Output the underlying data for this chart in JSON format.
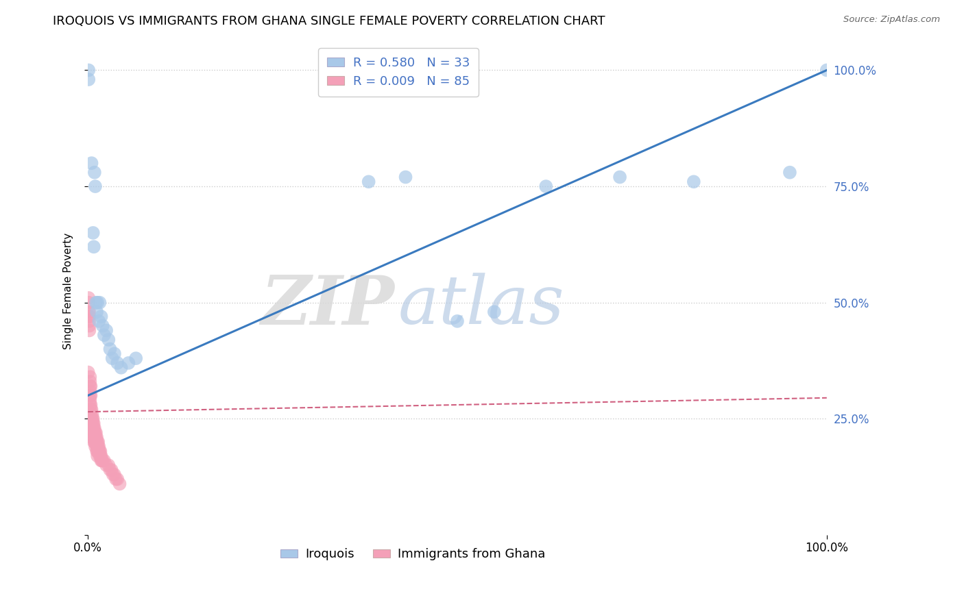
{
  "title": "IROQUOIS VS IMMIGRANTS FROM GHANA SINGLE FEMALE POVERTY CORRELATION CHART",
  "source": "Source: ZipAtlas.com",
  "ylabel": "Single Female Poverty",
  "legend_blue_r": "R = 0.580",
  "legend_blue_n": "N = 33",
  "legend_pink_r": "R = 0.009",
  "legend_pink_n": "N = 85",
  "legend_blue_label": "Iroquois",
  "legend_pink_label": "Immigrants from Ghana",
  "watermark_zip": "ZIP",
  "watermark_atlas": "atlas",
  "blue_scatter_color": "#a8c8e8",
  "pink_scatter_color": "#f4a0b8",
  "line_blue_color": "#3a7abf",
  "line_pink_color": "#d06080",
  "background_color": "#ffffff",
  "grid_color": "#cccccc",
  "right_tick_color": "#4472c4",
  "title_fontsize": 13,
  "axis_label_fontsize": 11,
  "tick_fontsize": 12,
  "legend_fontsize": 13,
  "iroquois_x": [
    0.001,
    0.001,
    0.005,
    0.007,
    0.008,
    0.009,
    0.01,
    0.011,
    0.012,
    0.013,
    0.015,
    0.016,
    0.018,
    0.02,
    0.022,
    0.025,
    0.028,
    0.03,
    0.033,
    0.036,
    0.04,
    0.045,
    0.055,
    0.065,
    0.38,
    0.43,
    0.5,
    0.55,
    0.62,
    0.72,
    0.82,
    0.95,
    1.0
  ],
  "iroquois_y": [
    1.0,
    0.98,
    0.8,
    0.65,
    0.62,
    0.78,
    0.75,
    0.5,
    0.48,
    0.5,
    0.46,
    0.5,
    0.47,
    0.45,
    0.43,
    0.44,
    0.42,
    0.4,
    0.38,
    0.39,
    0.37,
    0.36,
    0.37,
    0.38,
    0.76,
    0.77,
    0.46,
    0.48,
    0.75,
    0.77,
    0.76,
    0.78,
    1.0
  ],
  "ghana_x": [
    0.0005,
    0.001,
    0.001,
    0.001,
    0.0015,
    0.002,
    0.002,
    0.002,
    0.002,
    0.002,
    0.003,
    0.003,
    0.003,
    0.003,
    0.003,
    0.003,
    0.003,
    0.004,
    0.004,
    0.004,
    0.004,
    0.004,
    0.004,
    0.005,
    0.005,
    0.005,
    0.005,
    0.005,
    0.005,
    0.006,
    0.006,
    0.006,
    0.006,
    0.006,
    0.007,
    0.007,
    0.007,
    0.007,
    0.008,
    0.008,
    0.008,
    0.008,
    0.008,
    0.009,
    0.009,
    0.009,
    0.009,
    0.01,
    0.01,
    0.01,
    0.01,
    0.011,
    0.011,
    0.011,
    0.012,
    0.012,
    0.012,
    0.012,
    0.013,
    0.013,
    0.013,
    0.013,
    0.014,
    0.014,
    0.014,
    0.015,
    0.015,
    0.016,
    0.016,
    0.017,
    0.017,
    0.018,
    0.018,
    0.019,
    0.02,
    0.022,
    0.025,
    0.028,
    0.03,
    0.032,
    0.034,
    0.036,
    0.038,
    0.04,
    0.043
  ],
  "ghana_y": [
    0.35,
    0.48,
    0.5,
    0.51,
    0.47,
    0.45,
    0.47,
    0.48,
    0.46,
    0.44,
    0.33,
    0.31,
    0.32,
    0.34,
    0.3,
    0.29,
    0.28,
    0.32,
    0.3,
    0.28,
    0.27,
    0.26,
    0.25,
    0.27,
    0.25,
    0.24,
    0.23,
    0.22,
    0.21,
    0.26,
    0.25,
    0.24,
    0.23,
    0.22,
    0.25,
    0.24,
    0.23,
    0.22,
    0.24,
    0.23,
    0.22,
    0.21,
    0.2,
    0.23,
    0.22,
    0.21,
    0.2,
    0.22,
    0.21,
    0.2,
    0.19,
    0.22,
    0.21,
    0.2,
    0.21,
    0.2,
    0.19,
    0.18,
    0.2,
    0.19,
    0.18,
    0.17,
    0.2,
    0.19,
    0.18,
    0.19,
    0.18,
    0.18,
    0.17,
    0.18,
    0.17,
    0.17,
    0.16,
    0.16,
    0.16,
    0.16,
    0.15,
    0.15,
    0.14,
    0.14,
    0.13,
    0.13,
    0.12,
    0.12,
    0.11
  ],
  "iq_line_x": [
    0.0,
    1.0
  ],
  "iq_line_y": [
    0.3,
    1.0
  ],
  "gh_line_x": [
    0.0,
    1.0
  ],
  "gh_line_y": [
    0.265,
    0.295
  ],
  "xlim": [
    0.0,
    1.0
  ],
  "ylim": [
    0.0,
    1.05
  ]
}
